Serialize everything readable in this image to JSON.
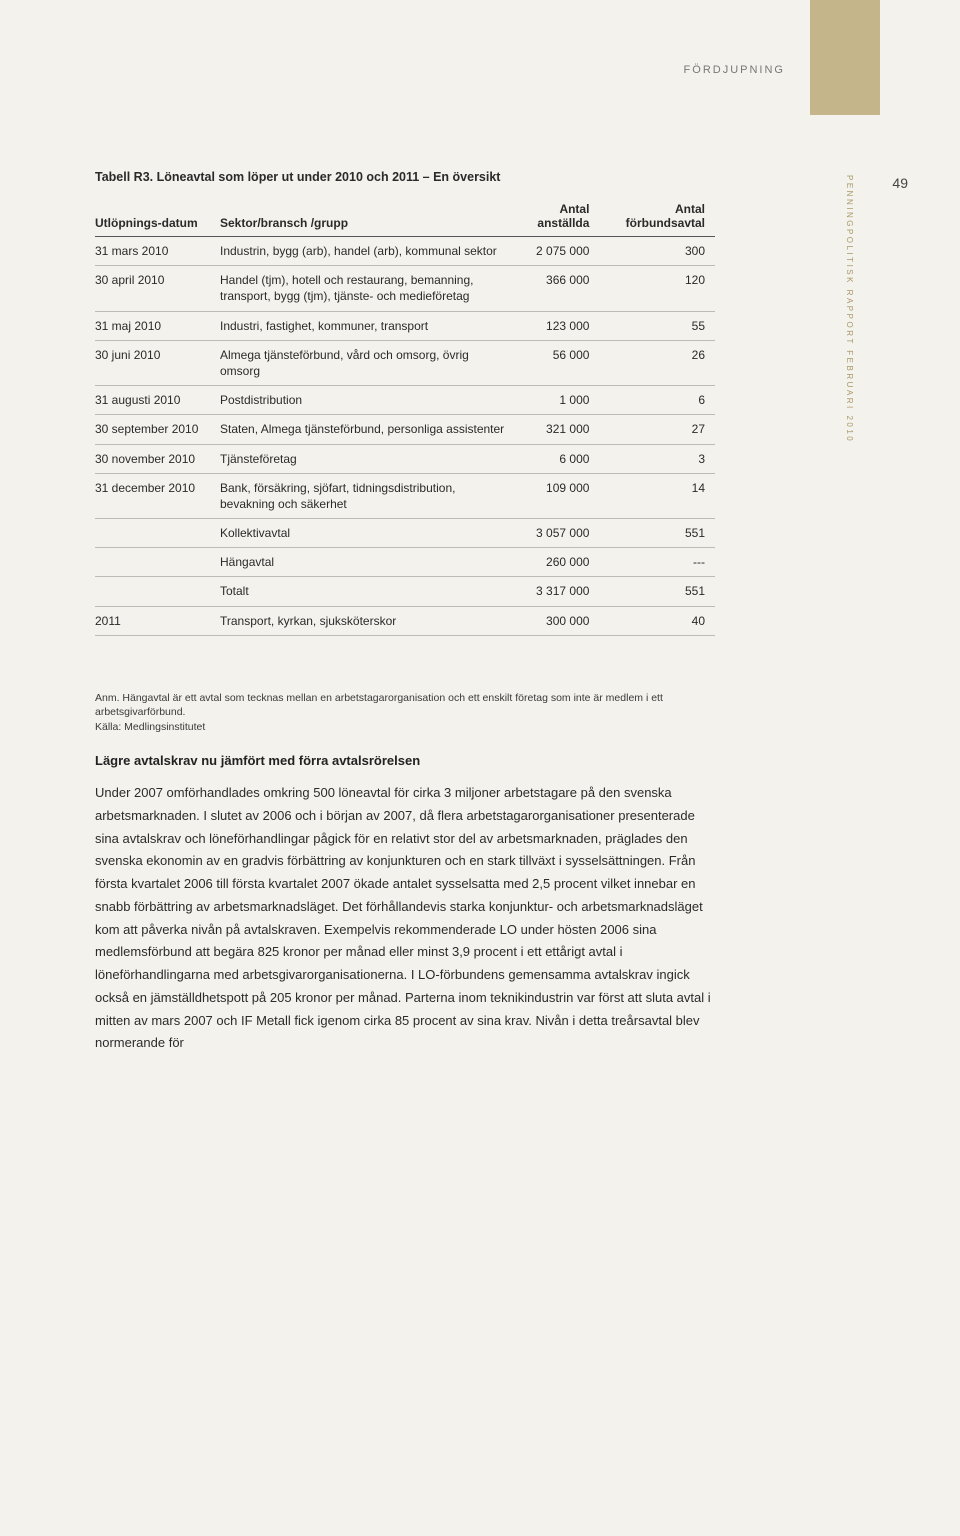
{
  "header": {
    "section_label": "FÖRDJUPNING",
    "side_text": "PENNINGPOLITISK RAPPORT FEBRUARI 2010",
    "page_number": "49"
  },
  "table": {
    "caption": "Tabell R3. Löneavtal som löper ut under 2010 och 2011 – En översikt",
    "columns": {
      "col1": "Utlöpnings-​datum",
      "col2": "Sektor/bransch /grupp",
      "col3_line1": "Antal",
      "col3_line2": "anställda",
      "col4_line1": "Antal",
      "col4_line2": "förbundsavtal"
    },
    "rows": [
      {
        "date": "31 mars 2010",
        "sector": "Industrin, bygg (arb), handel (arb), kommunal sektor",
        "employees": "2 075 000",
        "agreements": "300"
      },
      {
        "date": "30 april 2010",
        "sector": "Handel (tjm), hotell och restaurang, bemanning, transport, bygg (tjm), tjänste- och medieföretag",
        "employees": "366 000",
        "agreements": "120"
      },
      {
        "date": "31 maj 2010",
        "sector": "Industri, fastighet, kommuner, transport",
        "employees": "123 000",
        "agreements": "55"
      },
      {
        "date": "30 juni 2010",
        "sector": "Almega tjänsteförbund, vård och omsorg, övrig omsorg",
        "employees": "56 000",
        "agreements": "26"
      },
      {
        "date": "31 augusti 2010",
        "sector": "Postdistribution",
        "employees": "1 000",
        "agreements": "6"
      },
      {
        "date": "30 september 2010",
        "sector": "Staten, Almega tjänsteförbund, personliga assistenter",
        "employees": "321 000",
        "agreements": "27"
      },
      {
        "date": "30 november 2010",
        "sector": "Tjänsteföretag",
        "employees": "6 000",
        "agreements": "3"
      },
      {
        "date": "31 december 2010",
        "sector": "Bank, försäkring, sjöfart, tidningsdistribution, bevakning och säkerhet",
        "employees": "109 000",
        "agreements": "14"
      },
      {
        "date": "",
        "sector": "Kollektivavtal",
        "employees": "3 057 000",
        "agreements": "551"
      },
      {
        "date": "",
        "sector": "Hängavtal",
        "employees": "260 000",
        "agreements": "---"
      },
      {
        "date": "",
        "sector": "Totalt",
        "employees": "3 317 000",
        "agreements": "551"
      },
      {
        "date": "2011",
        "sector": "Transport, kyrkan, sjuksköterskor",
        "employees": "300 000",
        "agreements": "40"
      }
    ]
  },
  "footnote": "Anm. Hängavtal är ett avtal som tecknas mellan en arbetstagarorganisation och ett enskilt företag som inte är medlem i ett arbetsgivarförbund.",
  "source": "Källa: Medlingsinstitutet",
  "subhead": "Lägre avtalskrav nu jämfört med förra avtalsrörelsen",
  "body": "Under 2007 omförhandlades omkring 500 löneavtal för cirka 3 miljoner arbetstagare på den svenska arbetsmarknaden. I slutet av 2006 och i början av 2007, då flera arbetstagarorganisationer presenterade sina avtalskrav och löneförhandlingar pågick för en relativt stor del av arbetsmarknaden, präglades den svenska ekonomin av en gradvis förbättring av konjunkturen och en stark tillväxt i sysselsättningen. Från första kvartalet 2006 till första kvartalet 2007 ökade antalet sysselsatta med 2,5 procent vilket innebar en snabb förbättring av arbetsmarknadsläget. Det förhållandevis starka konjunktur- och arbetsmarknadsläget kom att påverka nivån på avtalskraven. Exempelvis rekommenderade LO under hösten 2006 sina medlemsförbund att begära 825 kronor per månad eller minst 3,9 procent i ett ettårigt avtal i löneförhandlingarna med arbetsgivarorganisationerna. I LO-förbundens gemensamma avtalskrav ingick också en jämställdhetspott på 205 kronor per månad. Parterna inom teknikindustrin var först att sluta avtal i mitten av mars 2007 och IF Metall fick igenom cirka 85 procent av sina krav. Nivån i detta treårsavtal blev normerande för"
}
